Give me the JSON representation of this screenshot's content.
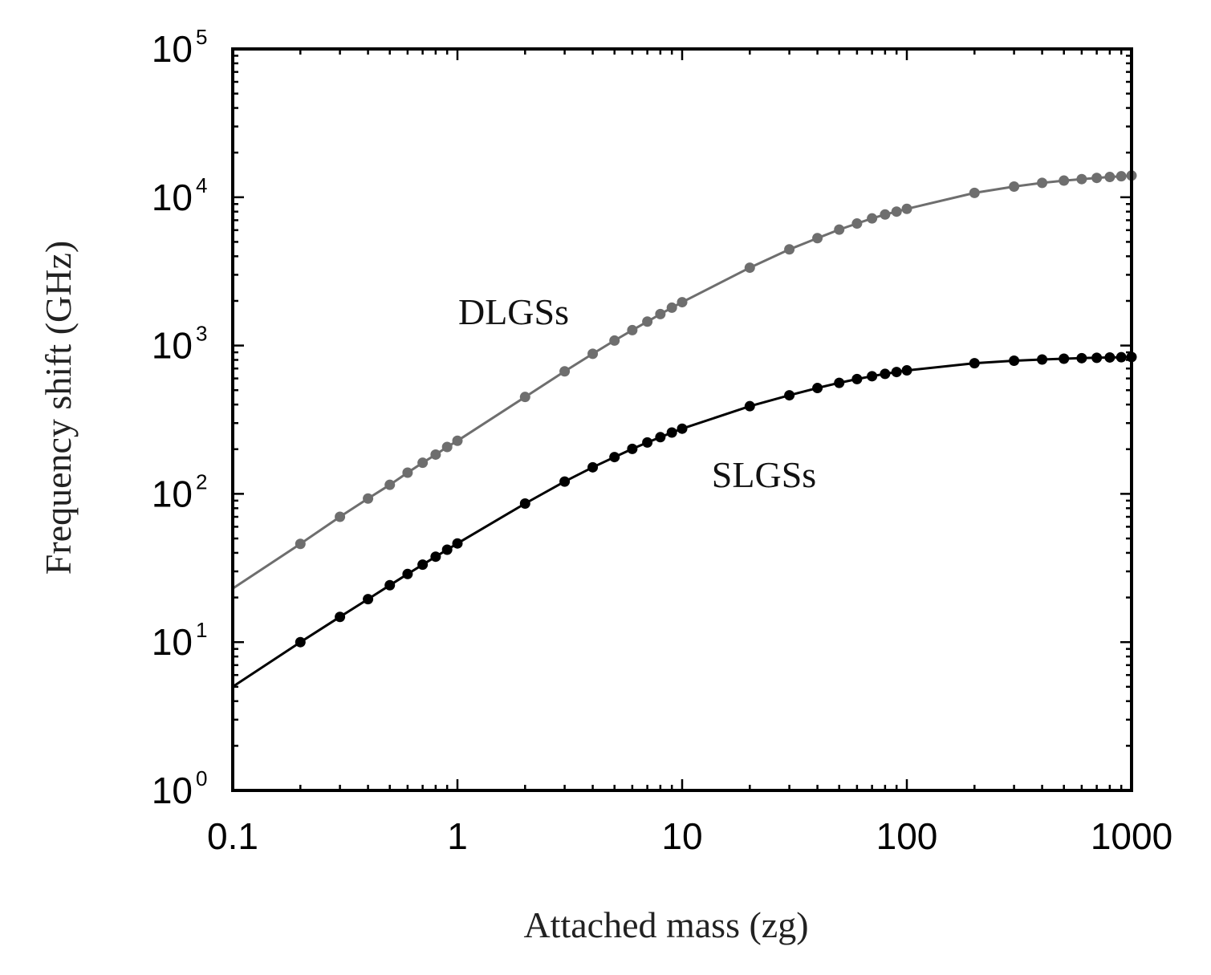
{
  "chart_data": {
    "type": "line",
    "title": "",
    "xlabel": "Attached mass (zg)",
    "ylabel": "Frequency shift (GHz)",
    "xscale": "log",
    "yscale": "log",
    "xlim": [
      0.1,
      1000
    ],
    "ylim": [
      1,
      100000
    ],
    "x_tick_labels": [
      "0.1",
      "1",
      "10",
      "100",
      "1000"
    ],
    "y_tick_labels": [
      {
        "base": "10",
        "exp": "0"
      },
      {
        "base": "10",
        "exp": "1"
      },
      {
        "base": "10",
        "exp": "2"
      },
      {
        "base": "10",
        "exp": "3"
      },
      {
        "base": "10",
        "exp": "4"
      },
      {
        "base": "10",
        "exp": "5"
      }
    ],
    "x": [
      0.1,
      0.2,
      0.3,
      0.4,
      0.5,
      0.6,
      0.7,
      0.8,
      0.9,
      1,
      2,
      3,
      4,
      5,
      6,
      7,
      8,
      9,
      10,
      20,
      30,
      40,
      50,
      60,
      70,
      80,
      90,
      100,
      200,
      300,
      400,
      500,
      600,
      700,
      800,
      900,
      1000
    ],
    "series": [
      {
        "name": "DLGSs",
        "color": "#6e6e6e",
        "values": [
          23,
          46,
          70,
          93,
          115,
          139,
          162,
          184,
          207,
          228,
          450,
          670,
          880,
          1080,
          1270,
          1450,
          1630,
          1800,
          1960,
          3350,
          4450,
          5300,
          6050,
          6650,
          7200,
          7650,
          8000,
          8350,
          10700,
          11800,
          12500,
          12950,
          13250,
          13500,
          13700,
          13850,
          14000
        ]
      },
      {
        "name": "SLGSs",
        "color": "#000000",
        "values": [
          5,
          10,
          14.8,
          19.5,
          24.2,
          28.8,
          33.3,
          37.7,
          42,
          46.3,
          86,
          121,
          151,
          177,
          201,
          222,
          241,
          259,
          275,
          390,
          462,
          517,
          560,
          594,
          621,
          644,
          663,
          680,
          760,
          790,
          805,
          815,
          822,
          827,
          831,
          834,
          837
        ]
      }
    ],
    "annotations": [
      "DLGSs",
      "SLGSs"
    ],
    "grid": false,
    "legend": "none"
  }
}
